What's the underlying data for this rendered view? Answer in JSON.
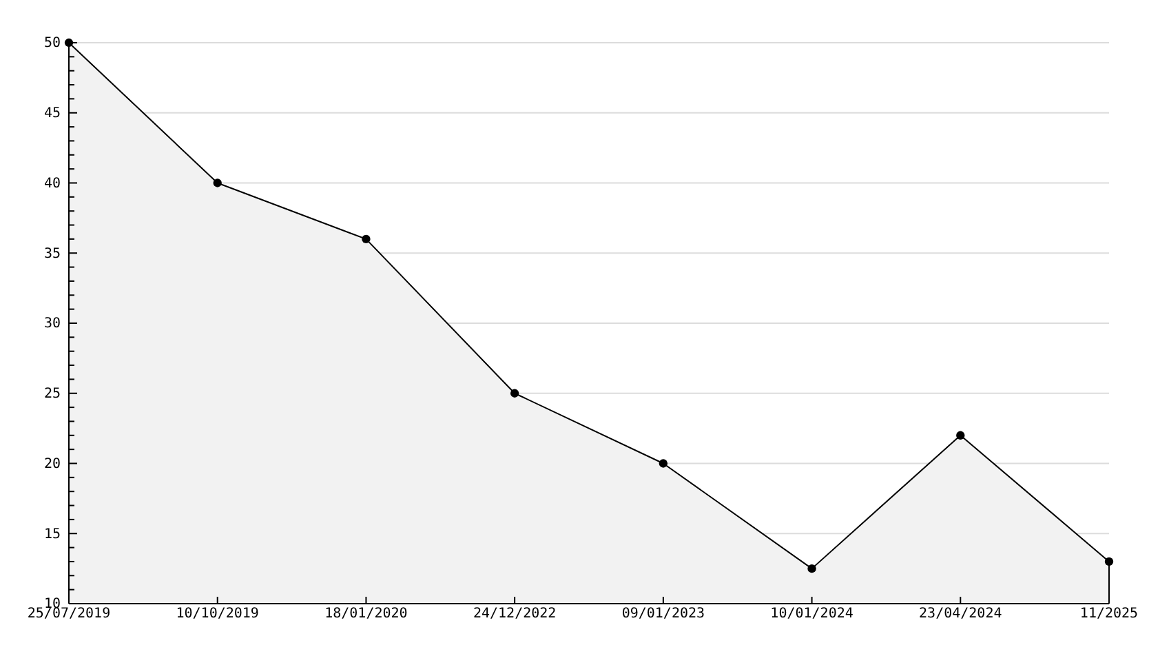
{
  "chart_data": {
    "type": "area",
    "categories": [
      "25/07/2019",
      "10/10/2019",
      "18/01/2020",
      "24/12/2022",
      "09/01/2023",
      "10/01/2024",
      "23/04/2024",
      "11/2025"
    ],
    "series": [
      {
        "color": "#000000",
        "values": [
          50,
          40,
          36,
          25,
          20,
          12.5,
          22,
          13
        ]
      }
    ],
    "ylim": [
      10,
      50
    ],
    "yticks": [
      10,
      {
        "value": 11,
        "label": null
      },
      {
        "value": 12,
        "label": null
      },
      {
        "value": 13,
        "label": null
      },
      {
        "value": 14,
        "label": null
      },
      15,
      {
        "value": 16,
        "label": null
      },
      {
        "value": 17,
        "label": null
      },
      {
        "value": 18,
        "label": null
      },
      {
        "value": 19,
        "label": null
      },
      20,
      {
        "value": 21,
        "label": null
      },
      {
        "value": 22,
        "label": null
      },
      {
        "value": 23,
        "label": null
      },
      {
        "value": 24,
        "label": null
      },
      25,
      {
        "value": 26,
        "label": null
      },
      {
        "value": 27,
        "label": null
      },
      {
        "value": 28,
        "label": null
      },
      {
        "value": 29,
        "label": null
      },
      30,
      {
        "value": 31,
        "label": null
      },
      {
        "value": 32,
        "label": null
      },
      {
        "value": 33,
        "label": null
      },
      {
        "value": 34,
        "label": null
      },
      35,
      {
        "value": 36,
        "label": null
      },
      {
        "value": 37,
        "label": null
      },
      {
        "value": 38,
        "label": null
      },
      {
        "value": 39,
        "label": null
      },
      40,
      {
        "value": 41,
        "label": null
      },
      {
        "value": 42,
        "label": null
      },
      {
        "value": 43,
        "label": null
      },
      {
        "value": 44,
        "label": null
      },
      45,
      {
        "value": 46,
        "label": null
      },
      {
        "value": 47,
        "label": null
      },
      {
        "value": 48,
        "label": null
      },
      {
        "value": 49,
        "label": null
      },
      50
    ],
    "grid": "y",
    "marker": "circle",
    "line_style": "solid"
  }
}
